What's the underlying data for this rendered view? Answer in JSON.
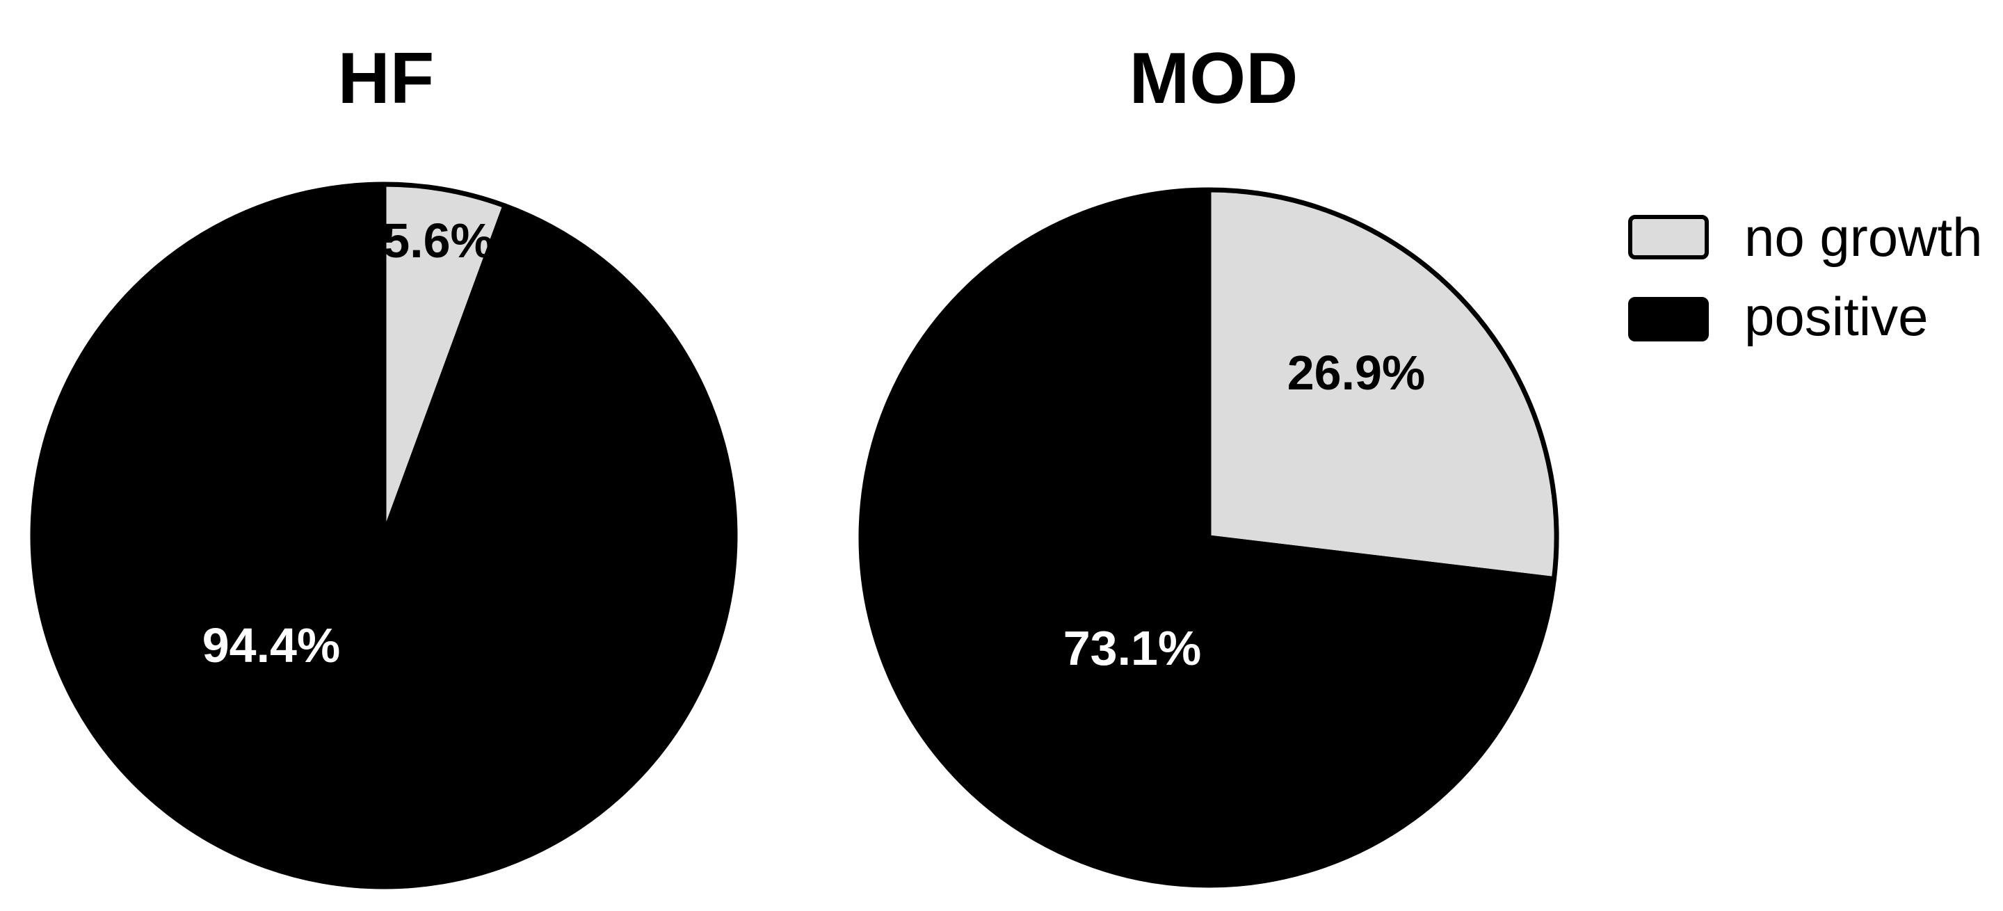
{
  "chart_data": [
    {
      "type": "pie",
      "title": "HF",
      "slices": [
        {
          "label": "no growth",
          "value": 5.6,
          "display": "5.6%",
          "color": "#dcdcdc"
        },
        {
          "label": "positive",
          "value": 94.4,
          "display": "94.4%",
          "color": "#000000"
        }
      ]
    },
    {
      "type": "pie",
      "title": "MOD",
      "slices": [
        {
          "label": "no growth",
          "value": 26.9,
          "display": "26.9%",
          "color": "#dcdcdc"
        },
        {
          "label": "positive",
          "value": 73.1,
          "display": "73.1%",
          "color": "#000000"
        }
      ]
    }
  ],
  "legend": {
    "placement": "top-right",
    "items": [
      {
        "label": "no growth",
        "color": "#dcdcdc"
      },
      {
        "label": "positive",
        "color": "#000000"
      }
    ]
  }
}
